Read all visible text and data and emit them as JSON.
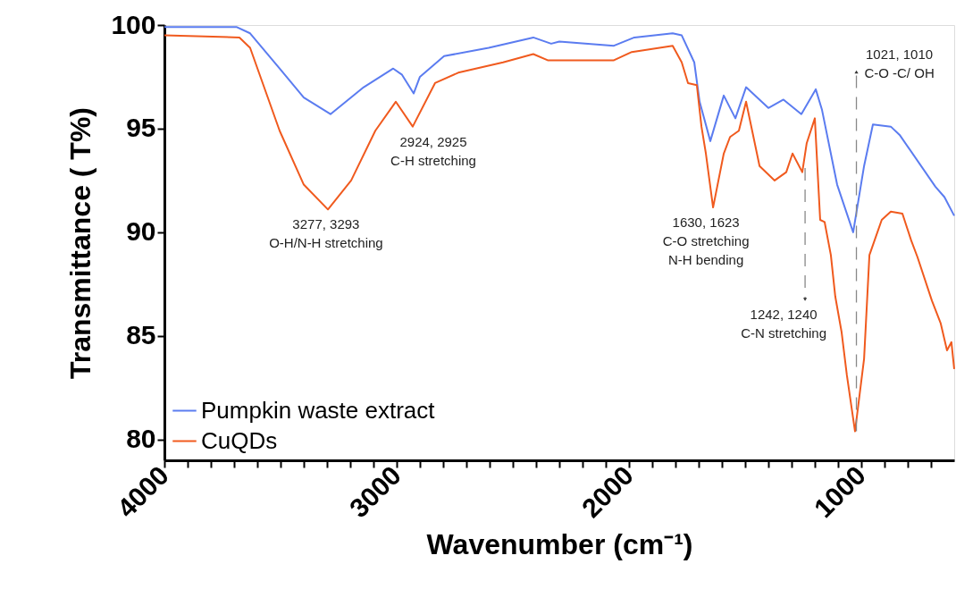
{
  "chart_data": {
    "type": "line",
    "xlabel": "Wavenumber (cm⁻¹)",
    "ylabel": "Transmittance ( T%)",
    "xlim": [
      4000,
      600
    ],
    "ylim": [
      79,
      100
    ],
    "xticks": [
      4000,
      {
        "value": 3900,
        "label": null
      },
      {
        "value": 3800,
        "label": null
      },
      {
        "value": 3700,
        "label": null
      },
      {
        "value": 3600,
        "label": null
      },
      {
        "value": 3500,
        "label": null
      },
      {
        "value": 3400,
        "label": null
      },
      {
        "value": 3300,
        "label": null
      },
      {
        "value": 3200,
        "label": null
      },
      {
        "value": 3100,
        "label": null
      },
      3000,
      {
        "value": 2900,
        "label": null
      },
      {
        "value": 2800,
        "label": null
      },
      {
        "value": 2700,
        "label": null
      },
      {
        "value": 2600,
        "label": null
      },
      {
        "value": 2500,
        "label": null
      },
      {
        "value": 2400,
        "label": null
      },
      {
        "value": 2300,
        "label": null
      },
      {
        "value": 2200,
        "label": null
      },
      {
        "value": 2100,
        "label": null
      },
      2000,
      {
        "value": 1900,
        "label": null
      },
      {
        "value": 1800,
        "label": null
      },
      {
        "value": 1700,
        "label": null
      },
      {
        "value": 1600,
        "label": null
      },
      {
        "value": 1500,
        "label": null
      },
      {
        "value": 1400,
        "label": null
      },
      {
        "value": 1300,
        "label": null
      },
      {
        "value": 1200,
        "label": null
      },
      {
        "value": 1100,
        "label": null
      },
      1000,
      {
        "value": 900,
        "label": null
      },
      {
        "value": 800,
        "label": null
      },
      {
        "value": 700,
        "label": null
      }
    ],
    "yticks": [
      80,
      85,
      90,
      95,
      100
    ],
    "grid": false,
    "legend": "bottom left",
    "marker": "none",
    "line_style": "solid",
    "series": [
      {
        "name": "Pumpkin waste extract",
        "color": "#5b7cf0",
        "x": [
          4000,
          3688,
          3631,
          3504,
          3400,
          3285,
          3142,
          3015,
          2977,
          2927,
          2900,
          2796,
          2604,
          2412,
          2335,
          2300,
          2065,
          1977,
          1812,
          1773,
          1719,
          1696,
          1650,
          1592,
          1542,
          1496,
          1400,
          1335,
          1258,
          1196,
          1169,
          1104,
          1035,
          988,
          950,
          873,
          835,
          681,
          642,
          600
        ],
        "values": [
          99.9,
          99.9,
          99.6,
          97.9,
          96.5,
          95.7,
          97.0,
          97.9,
          97.6,
          96.7,
          97.5,
          98.5,
          98.9,
          99.4,
          99.1,
          99.2,
          99.0,
          99.4,
          99.6,
          99.5,
          98.2,
          96.3,
          94.4,
          96.6,
          95.5,
          97.0,
          96.0,
          96.4,
          95.7,
          96.9,
          95.9,
          92.3,
          90.0,
          93.2,
          95.2,
          95.1,
          94.7,
          92.2,
          91.7,
          90.8
        ]
      },
      {
        "name": "CuQDs",
        "color": "#f05a1e",
        "x": [
          4000,
          3677,
          3631,
          3504,
          3400,
          3296,
          3196,
          3092,
          3004,
          2931,
          2835,
          2735,
          2542,
          2412,
          2350,
          2300,
          2065,
          1988,
          1812,
          1773,
          1746,
          1708,
          1688,
          1669,
          1638,
          1592,
          1565,
          1527,
          1496,
          1438,
          1373,
          1323,
          1296,
          1254,
          1235,
          1200,
          1177,
          1158,
          1131,
          1112,
          1085,
          1062,
          1027,
          988,
          965,
          912,
          873,
          823,
          785,
          758,
          696,
          658,
          631,
          612,
          600
        ],
        "values": [
          99.5,
          99.4,
          98.9,
          94.9,
          92.3,
          91.1,
          92.5,
          94.9,
          96.3,
          95.1,
          97.2,
          97.7,
          98.2,
          98.6,
          98.3,
          98.3,
          98.3,
          98.7,
          99.0,
          98.2,
          97.2,
          97.1,
          95.1,
          93.8,
          91.2,
          93.8,
          94.6,
          94.9,
          96.3,
          93.2,
          92.5,
          92.9,
          93.8,
          92.9,
          94.3,
          95.5,
          90.6,
          90.5,
          88.9,
          86.9,
          85.2,
          83.1,
          80.4,
          83.9,
          88.9,
          90.6,
          91.0,
          90.9,
          89.6,
          88.8,
          86.7,
          85.6,
          84.3,
          84.7,
          83.4
        ]
      }
    ],
    "annotations": [
      {
        "text": "3277, 3293\nO-H/N-H stretching",
        "x": 3285,
        "y": 91.1
      },
      {
        "text": "2924, 2925\nC-H stretching",
        "x": 2927,
        "y": 95.1
      },
      {
        "text": "1630, 1623\nC-O stretching\nN-H bending",
        "x": 1638,
        "y": 91.2
      },
      {
        "text": "1242, 1240\nC-N stretching",
        "x": 1242,
        "y": 93.1
      },
      {
        "text": "1021, 1010\nC-O -C/ OH",
        "x": 1021,
        "y": 80.4
      }
    ]
  }
}
